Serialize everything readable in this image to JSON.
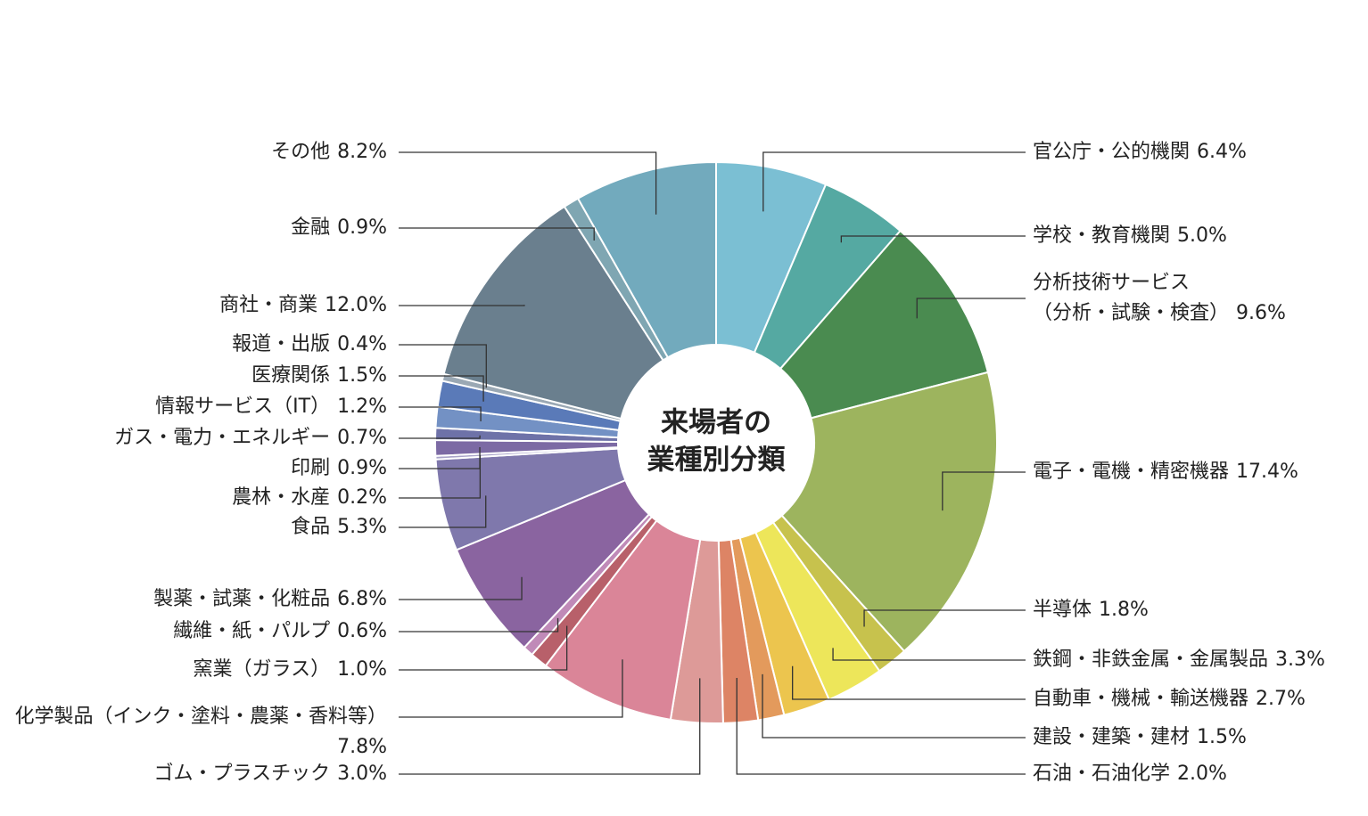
{
  "chart_data": {
    "type": "donut",
    "center_text": [
      "来場者の",
      "業種別分類"
    ],
    "categories": [
      "官公庁・公的機関",
      "学校・教育機関",
      "分析技術サービス\n（分析・試験・検査）",
      "電子・電機・精密機器",
      "半導体",
      "鉄鋼・非鉄金属・金属製品",
      "自動車・機械・輸送機器",
      "建設・建築・建材",
      "石油・石油化学",
      "ゴム・プラスチック",
      "化学製品（インク・塗料・農薬・香料等）",
      "窯業（ガラス）",
      "繊維・紙・パルプ",
      "製薬・試薬・化粧品",
      "食品",
      "農林・水産",
      "印刷",
      "ガス・電力・エネルギー",
      "情報サービス（IT）",
      "医療関係",
      "報道・出版",
      "商社・商業",
      "金融",
      "その他"
    ],
    "values": [
      6.4,
      5.0,
      9.6,
      17.4,
      1.8,
      3.3,
      2.7,
      1.5,
      2.0,
      3.0,
      7.8,
      1.0,
      0.6,
      6.8,
      5.3,
      0.2,
      0.9,
      0.7,
      1.2,
      1.5,
      0.4,
      12.0,
      0.9,
      8.2
    ],
    "value_labels": [
      "6.4%",
      "5.0%",
      "9.6%",
      "17.4%",
      "1.8%",
      "3.3%",
      "2.7%",
      "1.5%",
      "2.0%",
      "3.0%",
      "7.8%",
      "1.0%",
      "0.6%",
      "6.8%",
      "5.3%",
      "0.2%",
      "0.9%",
      "0.7%",
      "1.2%",
      "1.5%",
      "0.4%",
      "12.0%",
      "0.9%",
      "8.2%"
    ],
    "colors": [
      "#7bbfd3",
      "#55a9a2",
      "#4a8b50",
      "#9db45e",
      "#c7c24d",
      "#ede65a",
      "#ecc54e",
      "#e39a5c",
      "#dd8465",
      "#dd9a98",
      "#da8598",
      "#b8606a",
      "#c08ab8",
      "#8a64a0",
      "#7f78ac",
      "#a8a3c8",
      "#7c6aa4",
      "#6e72a8",
      "#7391c4",
      "#5a7ab8",
      "#9aa8b4",
      "#6a7f8e",
      "#7fa6b2",
      "#72aabd"
    ]
  }
}
